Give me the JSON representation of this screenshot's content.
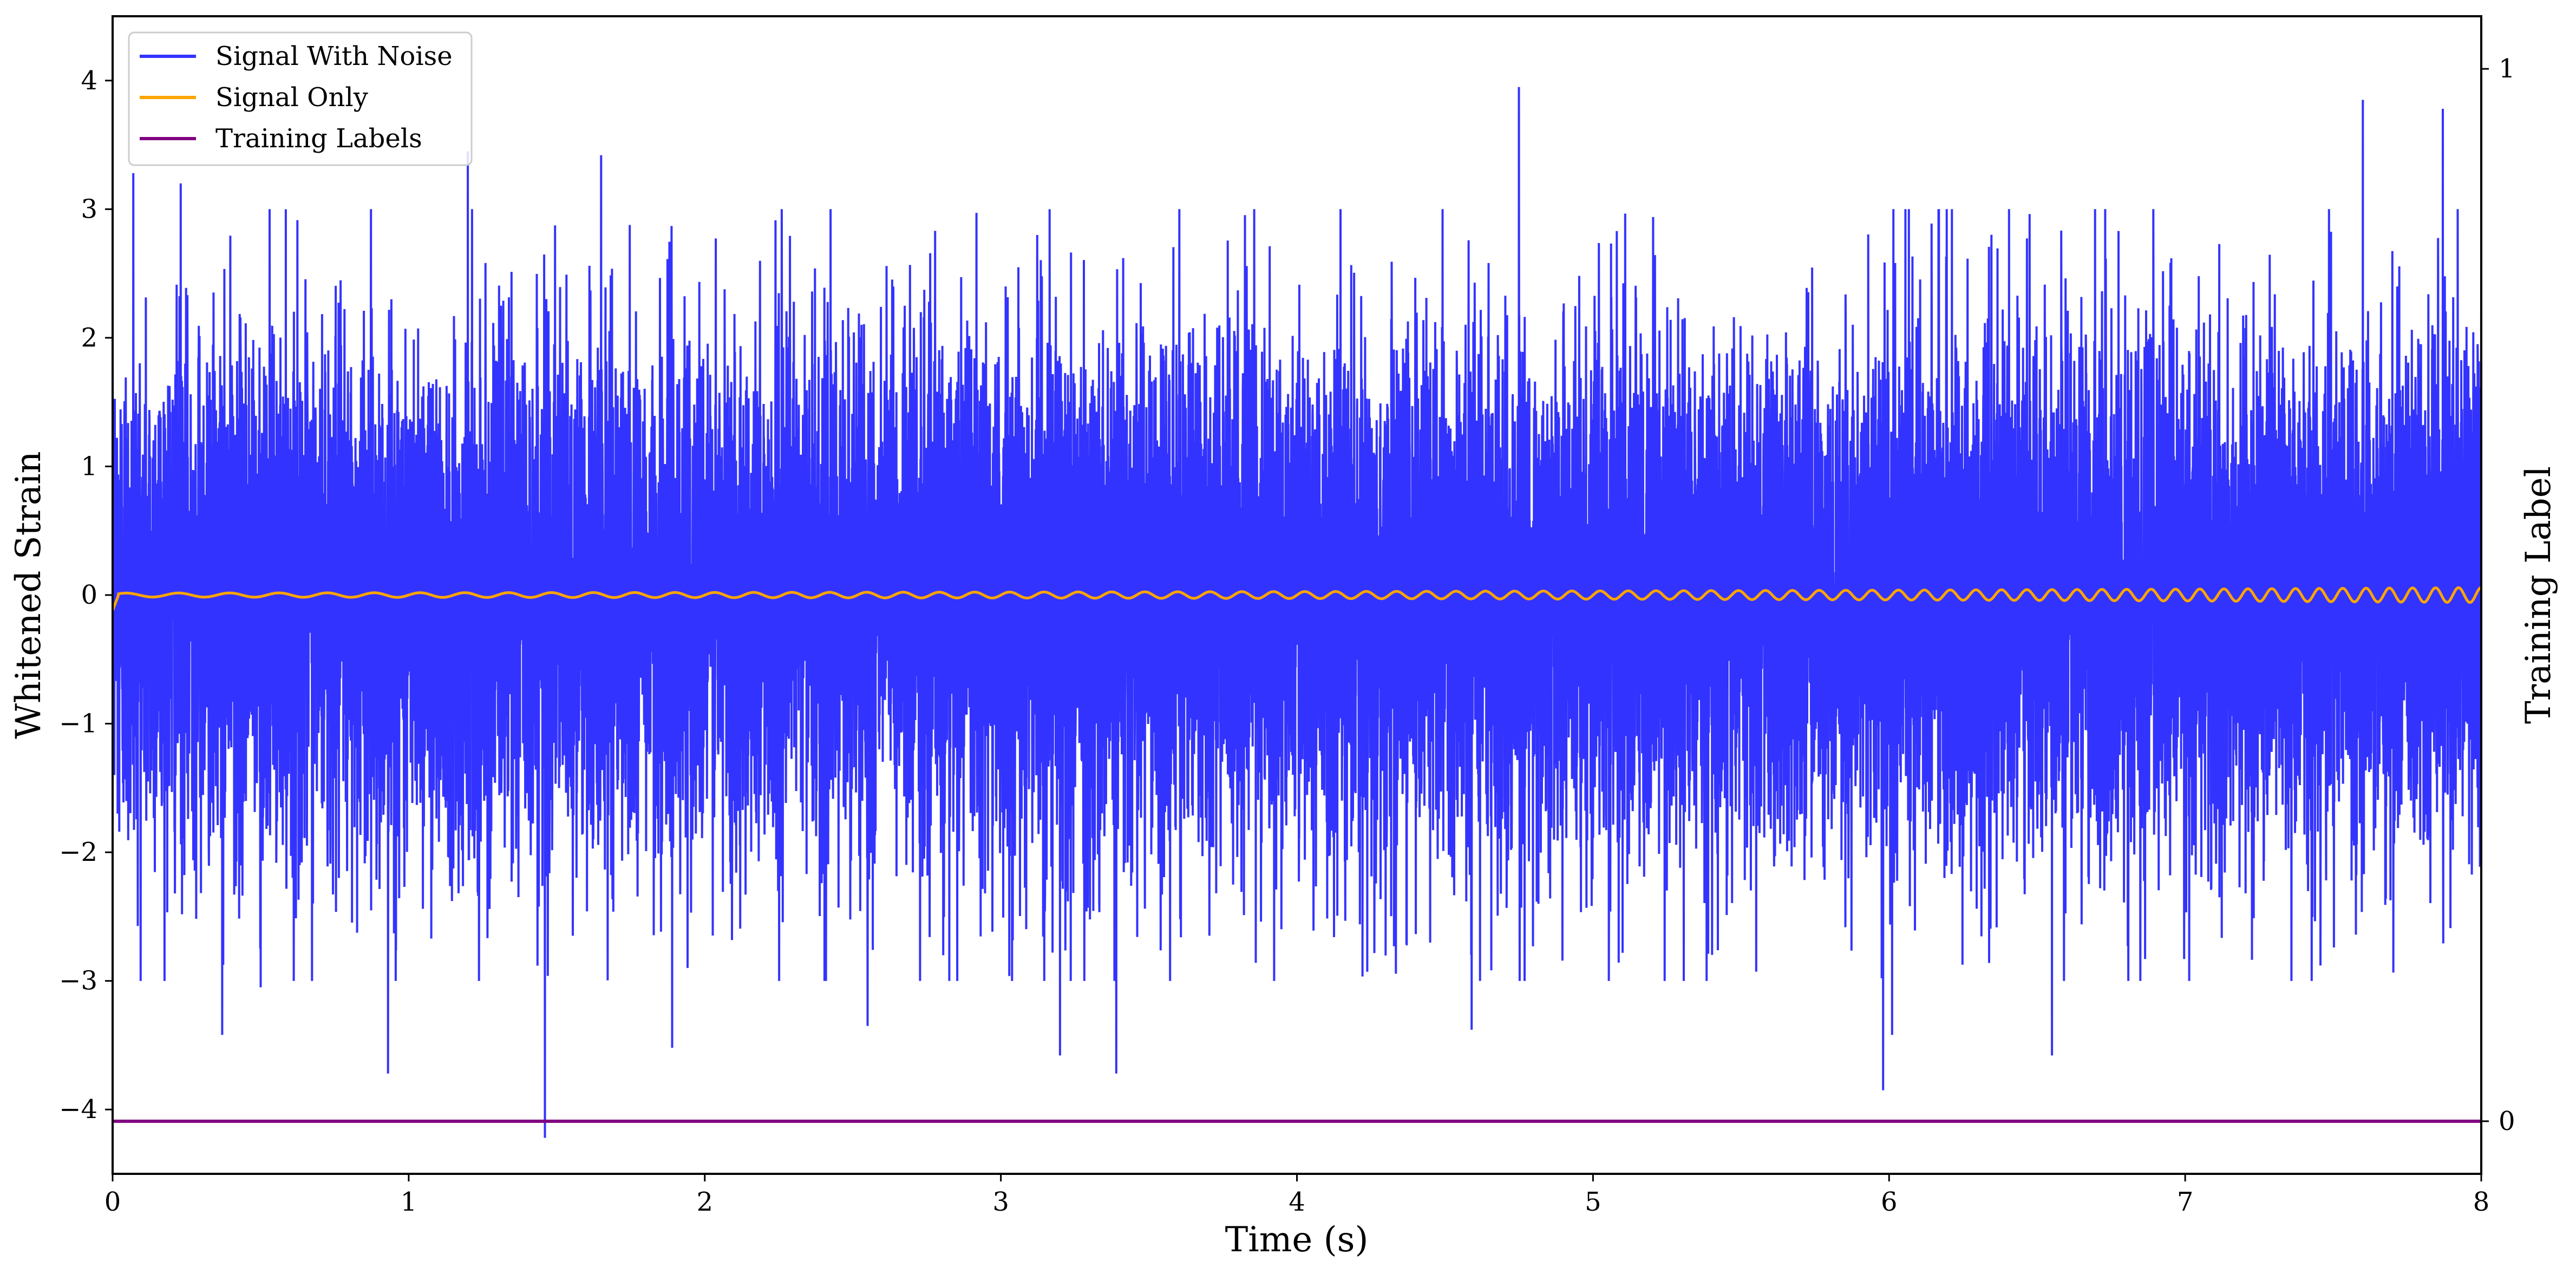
{
  "chart_data": {
    "type": "line",
    "xlabel": "Time (s)",
    "ylabel": "Whitened Strain",
    "ylabel_right": "Training Label",
    "xlim": [
      0,
      8
    ],
    "ylim": [
      -4.5,
      4.5
    ],
    "ylim_right": [
      -0.05,
      1.05
    ],
    "xticks": [
      "0",
      "1",
      "2",
      "3",
      "4",
      "5",
      "6",
      "7",
      "8"
    ],
    "yticks": [
      "4",
      "3",
      "2",
      "1",
      "0",
      "−1",
      "−2",
      "−3",
      "−4"
    ],
    "yticks_right": [
      "1",
      "0"
    ],
    "grid": false,
    "legend_position": "top-left",
    "series": [
      {
        "name": "Signal With Noise",
        "color": "#3333ff",
        "axis": "left",
        "noise_std": 1.0,
        "notable_points": [
          {
            "x": 0.0,
            "y": 2.7
          },
          {
            "x": 0.07,
            "y": 3.28
          },
          {
            "x": 0.23,
            "y": 3.2
          },
          {
            "x": 0.37,
            "y": -3.42
          },
          {
            "x": 0.5,
            "y": -3.05
          },
          {
            "x": 0.93,
            "y": -3.72
          },
          {
            "x": 1.2,
            "y": 3.45
          },
          {
            "x": 1.46,
            "y": -4.22
          },
          {
            "x": 1.65,
            "y": 3.42
          },
          {
            "x": 1.89,
            "y": -3.52
          },
          {
            "x": 2.55,
            "y": -3.35
          },
          {
            "x": 3.2,
            "y": -3.58
          },
          {
            "x": 3.39,
            "y": -3.72
          },
          {
            "x": 4.59,
            "y": -3.38
          },
          {
            "x": 4.75,
            "y": 3.95
          },
          {
            "x": 5.98,
            "y": -3.85
          },
          {
            "x": 6.01,
            "y": -3.42
          },
          {
            "x": 6.55,
            "y": -3.58
          },
          {
            "x": 7.6,
            "y": 3.85
          },
          {
            "x": 7.87,
            "y": 3.78
          },
          {
            "x": 8.0,
            "y": 2.8
          }
        ]
      },
      {
        "name": "Signal Only",
        "color": "#ffa500",
        "axis": "left",
        "chirp_x": [
          0,
          1,
          2,
          3,
          4,
          5,
          6,
          7,
          8
        ],
        "chirp_amplitude": [
          0.015,
          0.018,
          0.02,
          0.023,
          0.027,
          0.032,
          0.038,
          0.046,
          0.058
        ],
        "chirp_cycles_per_second": [
          5.5,
          6.5,
          7.5,
          8.5,
          9.5,
          10.5,
          11.3,
          12.2,
          13.0
        ]
      },
      {
        "name": "Training Labels",
        "color": "#800080",
        "axis": "right",
        "x": [
          0,
          8
        ],
        "y": [
          0,
          0
        ]
      }
    ]
  }
}
